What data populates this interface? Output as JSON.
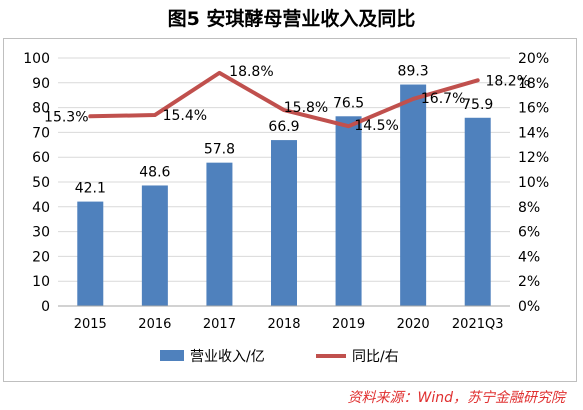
{
  "title": "图5 安琪酵母营业收入及同比",
  "source": "资料来源：Wind，苏宁金融研究院",
  "chart_data": {
    "type": "bar+line",
    "categories": [
      "2015",
      "2016",
      "2017",
      "2018",
      "2019",
      "2020",
      "2021Q3"
    ],
    "series": [
      {
        "name": "营业收入/亿",
        "type": "bar",
        "axis": "left",
        "color": "#4f81bd",
        "values": [
          42.1,
          48.6,
          57.8,
          66.9,
          76.5,
          89.3,
          75.9
        ],
        "labels": [
          "42.1",
          "48.6",
          "57.8",
          "66.9",
          "76.5",
          "89.3",
          "75.9"
        ]
      },
      {
        "name": "同比/右",
        "type": "line",
        "axis": "right",
        "color": "#c0504d",
        "values": [
          15.3,
          15.4,
          18.8,
          15.8,
          14.5,
          16.7,
          18.2
        ],
        "labels": [
          "15.3%",
          "15.4%",
          "18.8%",
          "15.8%",
          "14.5%",
          "16.7%",
          "18.2%"
        ]
      }
    ],
    "y_left": {
      "min": 0,
      "max": 100,
      "step": 10,
      "ticks": [
        "0",
        "10",
        "20",
        "30",
        "40",
        "50",
        "60",
        "70",
        "80",
        "90",
        "100"
      ]
    },
    "y_right": {
      "min": 0,
      "max": 20,
      "step": 2,
      "ticks": [
        "0%",
        "2%",
        "4%",
        "6%",
        "8%",
        "10%",
        "12%",
        "14%",
        "16%",
        "18%",
        "20%"
      ]
    },
    "grid": true,
    "legend": "bottom"
  }
}
